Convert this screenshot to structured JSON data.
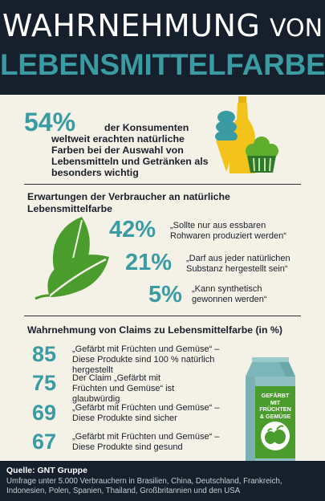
{
  "title": {
    "line1_word": "WAHRNEHMUNG",
    "line1_suffix": "VON",
    "line2": "LEBENSMITTELFARBE"
  },
  "intro": {
    "percent": "54%",
    "text_line1": "der Konsumenten",
    "text_rest": "weltweit erachten natürliche Farben bei der Auswahl von Lebensmitteln und Getränken als besonders wichtig"
  },
  "expectations": {
    "heading": "Erwartungen der Verbraucher an natürliche Lebensmittelfarbe",
    "items": [
      {
        "percent": "42%",
        "text": "„Sollte nur aus essbaren Rohwaren produziert werden“"
      },
      {
        "percent": "21%",
        "text": "„Darf aus jeder natürlichen Substanz hergestellt sein“"
      },
      {
        "percent": "5%",
        "text": "„Kann synthetisch gewonnen werden“"
      }
    ]
  },
  "claims": {
    "heading": "Wahrnehmung von Claims zu Lebensmittelfarbe (in %)",
    "items": [
      {
        "value": "85",
        "text": "„Gefärbt mit Früchten und Gemüse“ – Diese Produkte sind 100 % natürlich hergestellt"
      },
      {
        "value": "75",
        "text": "Der Claim „Gefärbt mit Früchten und Gemüse“ ist glaubwürdig"
      },
      {
        "value": "69",
        "text": "„Gefärbt mit Früchten und Gemüse“ – Diese Produkte sind sicher"
      },
      {
        "value": "67",
        "text": "„Gefärbt mit Früchten und Gemüse“ – Diese Produkte sind gesund"
      }
    ],
    "carton_label": {
      "line1": "GEFÄRBT",
      "line2": "MIT FRÜCHTEN",
      "line3": "& GEMÜSE"
    }
  },
  "footer": {
    "source": "Quelle: GNT Gruppe",
    "note": "Umfrage unter 5.000 Verbrauchern in Brasilien, China, Deutschland, Frankreich, Indonesien, Polen, Spanien, Thailand, Großbritannien und den USA"
  },
  "colors": {
    "header_bg": "#15202c",
    "accent_teal": "#3a9ba3",
    "background": "#f4f1e6",
    "leaf_green": "#4a9c2d",
    "bottle_yellow": "#f2c31b"
  }
}
